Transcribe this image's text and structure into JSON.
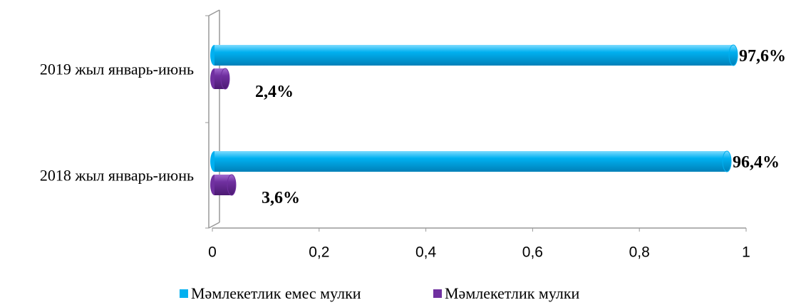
{
  "chart_data": {
    "type": "bar",
    "orientation": "horizontal",
    "categories": [
      "2018 жыл январь-июнь",
      "2019 жыл январь-июнь"
    ],
    "series": [
      {
        "name": "Мәмлекетлик емес мулки",
        "color": "#00b0f0",
        "values": [
          0.964,
          0.976
        ],
        "value_labels": [
          "96,4%",
          "97,6%"
        ]
      },
      {
        "name": "Мәмлекетлик мулки",
        "color": "#7030a0",
        "values": [
          0.036,
          0.024
        ],
        "value_labels": [
          "3,6%",
          "2,4%"
        ]
      }
    ],
    "xlim": [
      0,
      1
    ],
    "xticks": [
      0,
      {
        "value": 0.2,
        "label": "0,2"
      },
      {
        "value": 0.4,
        "label": "0,4"
      },
      {
        "value": 0.6,
        "label": "0,6"
      },
      {
        "value": 0.8,
        "label": "0,8"
      },
      1
    ],
    "legend": "bottom"
  }
}
